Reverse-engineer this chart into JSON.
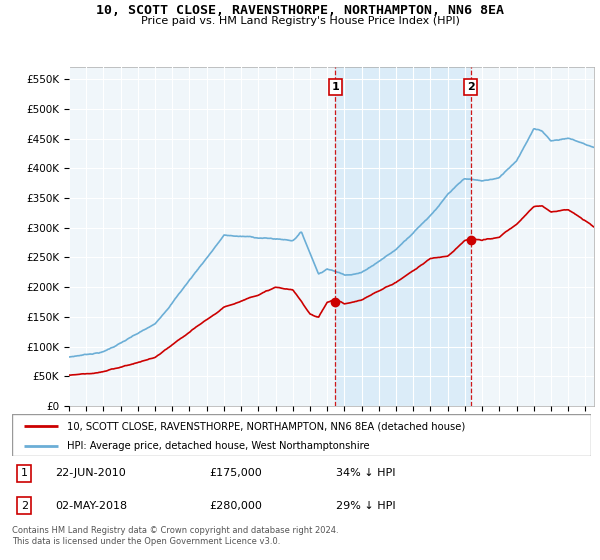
{
  "title": "10, SCOTT CLOSE, RAVENSTHORPE, NORTHAMPTON, NN6 8EA",
  "subtitle": "Price paid vs. HM Land Registry's House Price Index (HPI)",
  "ylim": [
    0,
    570000
  ],
  "xlim_start": 1995.0,
  "xlim_end": 2025.5,
  "yticks": [
    0,
    50000,
    100000,
    150000,
    200000,
    250000,
    300000,
    350000,
    400000,
    450000,
    500000,
    550000
  ],
  "ytick_labels": [
    "£0",
    "£50K",
    "£100K",
    "£150K",
    "£200K",
    "£250K",
    "£300K",
    "£350K",
    "£400K",
    "£450K",
    "£500K",
    "£550K"
  ],
  "bg_color": "#f0f6fa",
  "hpi_color": "#6baed6",
  "price_color": "#cc0000",
  "shade_color": "#d6eaf8",
  "marker1_date": 2010.47,
  "marker1_price": 175000,
  "marker2_date": 2018.33,
  "marker2_price": 280000,
  "annotation1": [
    "1",
    "22-JUN-2010",
    "£175,000",
    "34% ↓ HPI"
  ],
  "annotation2": [
    "2",
    "02-MAY-2018",
    "£280,000",
    "29% ↓ HPI"
  ],
  "legend_line1": "10, SCOTT CLOSE, RAVENSTHORPE, NORTHAMPTON, NN6 8EA (detached house)",
  "legend_line2": "HPI: Average price, detached house, West Northamptonshire",
  "footnote": "Contains HM Land Registry data © Crown copyright and database right 2024.\nThis data is licensed under the Open Government Licence v3.0.",
  "xticks": [
    1995,
    1996,
    1997,
    1998,
    1999,
    2000,
    2001,
    2002,
    2003,
    2004,
    2005,
    2006,
    2007,
    2008,
    2009,
    2010,
    2011,
    2012,
    2013,
    2014,
    2015,
    2016,
    2017,
    2018,
    2019,
    2020,
    2021,
    2022,
    2023,
    2024,
    2025
  ]
}
